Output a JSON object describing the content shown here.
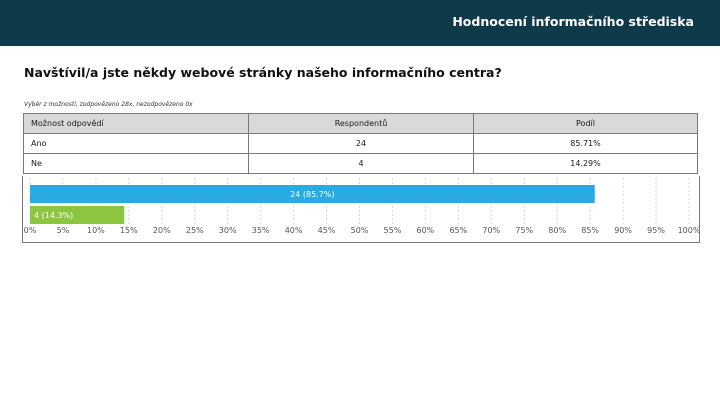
{
  "header": {
    "title": "Hodnocení informačního střediska"
  },
  "question": {
    "title": "Navštívil/a jste někdy webové stránky našeho informačního centra?"
  },
  "meta": {
    "text": "Výběr z možností, zodpovězeno 28x, nezodpovězeno 0x"
  },
  "table": {
    "columns": [
      "Možnost odpovědí",
      "Respondentů",
      "Podíl"
    ],
    "rows": [
      [
        "Ano",
        "24",
        "85.71%"
      ],
      [
        "Ne",
        "4",
        "14.29%"
      ]
    ]
  },
  "chart_data": {
    "type": "bar",
    "orientation": "horizontal",
    "categories": [
      "Ano",
      "Ne"
    ],
    "values": [
      85.7,
      14.3
    ],
    "labels": [
      "24 (85.7%)",
      "4 (14.3%)"
    ],
    "colors": [
      "#29abe2",
      "#8cc63f"
    ],
    "xlim": [
      0,
      100
    ],
    "ticks": [
      "0%",
      "5%",
      "10%",
      "15%",
      "20%",
      "25%",
      "30%",
      "35%",
      "40%",
      "45%",
      "50%",
      "55%",
      "60%",
      "65%",
      "70%",
      "75%",
      "80%",
      "85%",
      "90%",
      "95%",
      "100%"
    ],
    "grid": true
  }
}
